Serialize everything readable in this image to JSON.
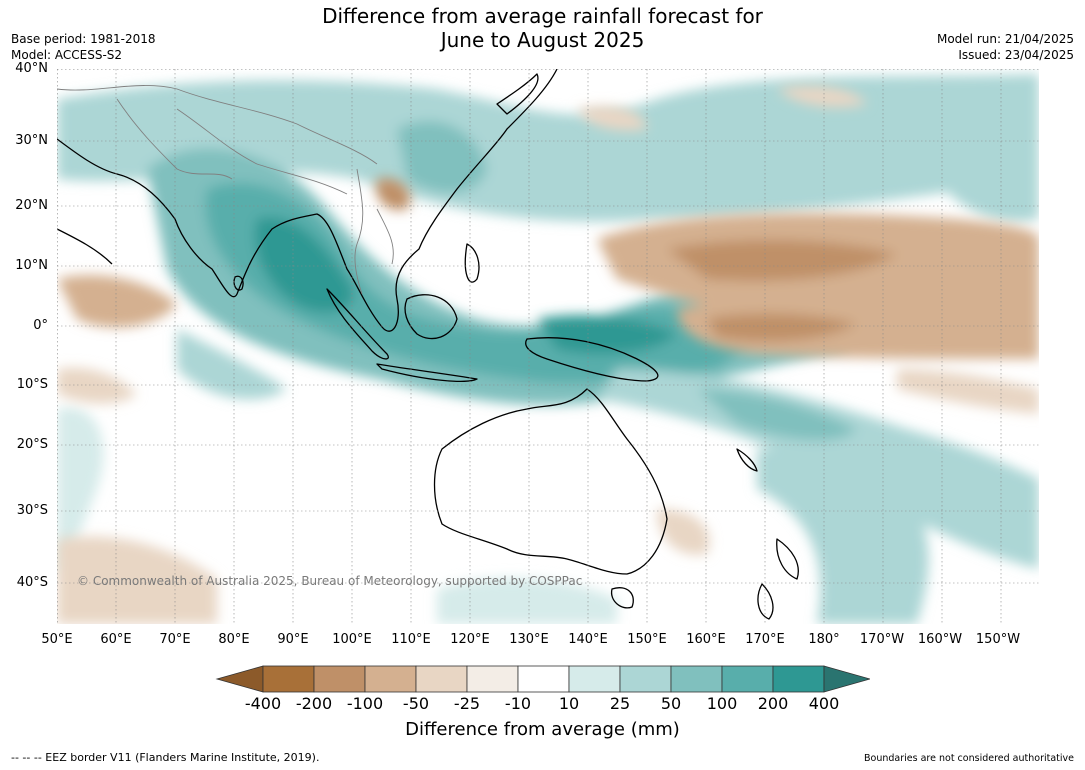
{
  "title_line1": "Difference from average rainfall forecast for",
  "title_line2": "June to August 2025",
  "base_period": "Base period: 1981-2018",
  "model": "Model: ACCESS-S2",
  "model_run": "Model run: 21/04/2025",
  "issued": "Issued: 23/04/2025",
  "lat_labels": [
    "40°N",
    "30°N",
    "20°N",
    "10°N",
    "0°",
    "10°S",
    "20°S",
    "30°S",
    "40°S"
  ],
  "lon_labels": [
    "50°E",
    "60°E",
    "70°E",
    "80°E",
    "90°E",
    "100°E",
    "110°E",
    "120°E",
    "130°E",
    "140°E",
    "150°E",
    "160°E",
    "170°E",
    "180°",
    "170°W",
    "160°W",
    "150°W"
  ],
  "copyright": "© Commonwealth of Australia 2025, Bureau of Meteorology, supported by COSPPac",
  "colorbar": {
    "ticks": [
      "-400",
      "-200",
      "-100",
      "-50",
      "-25",
      "-10",
      "10",
      "25",
      "50",
      "100",
      "200",
      "400"
    ],
    "colors": [
      "#8c5a2a",
      "#a87038",
      "#bf9068",
      "#d4b090",
      "#e8d6c4",
      "#f3ede6",
      "#ffffff",
      "#d6ebea",
      "#acd6d5",
      "#80c0be",
      "#58aeab",
      "#2e9893",
      "#2a7470"
    ],
    "title": "Difference from average (mm)"
  },
  "footer_left": "--  --  -- EEZ border V11 (Flanders Marine Institute, 2019).",
  "footer_right": "Boundaries are not considered authoritative"
}
